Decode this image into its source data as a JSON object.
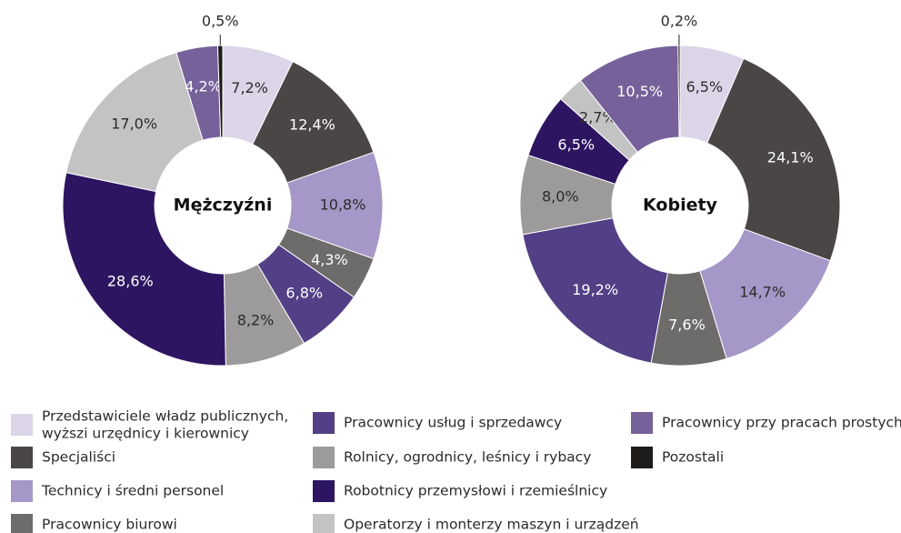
{
  "categories": [
    "Przedstawiciele władz publicznych,\nwyższi urzędnicy i kierownicy",
    "Specjaliści",
    "Technicy i średni personel",
    "Pracownicy biurowi",
    "Pracownicy usług i sprzedawcy",
    "Rolnicy, ogrodnicy, leśnicy i rybacy",
    "Robotnicy przemysłowi i rzemieślnicy",
    "Operatorzy i monterzy maszyn i urządzeń",
    "Pracownicy przy pracach prostych",
    "Pozostali"
  ],
  "colors": [
    "#dcd4e7",
    "#4a4645",
    "#a597c7",
    "#6e6b6b",
    "#523f86",
    "#9c9a9a",
    "#2e1561",
    "#c4c3c3",
    "#77619a",
    "#1e1b1b"
  ],
  "chart_data": [
    {
      "type": "pie",
      "title": "Mężczyźni",
      "values": [
        7.2,
        12.4,
        10.8,
        4.3,
        6.8,
        8.2,
        28.6,
        17.0,
        4.2,
        0.5
      ],
      "value_labels": [
        "7,2%",
        "12,4%",
        "10,8%",
        "4,3%",
        "6,8%",
        "8,2%",
        "28,6%",
        "17,0%",
        "4,2%",
        "0,5%"
      ]
    },
    {
      "type": "pie",
      "title": "Kobiety",
      "values": [
        6.5,
        24.1,
        14.7,
        7.6,
        19.2,
        8.0,
        6.5,
        2.7,
        10.5,
        0.2
      ],
      "value_labels": [
        "6,5%",
        "24,1%",
        "14,7%",
        "7,6%",
        "19,2%",
        "8,0%",
        "6,5%",
        "2,7%",
        "10,5%",
        "0,2%"
      ]
    }
  ]
}
